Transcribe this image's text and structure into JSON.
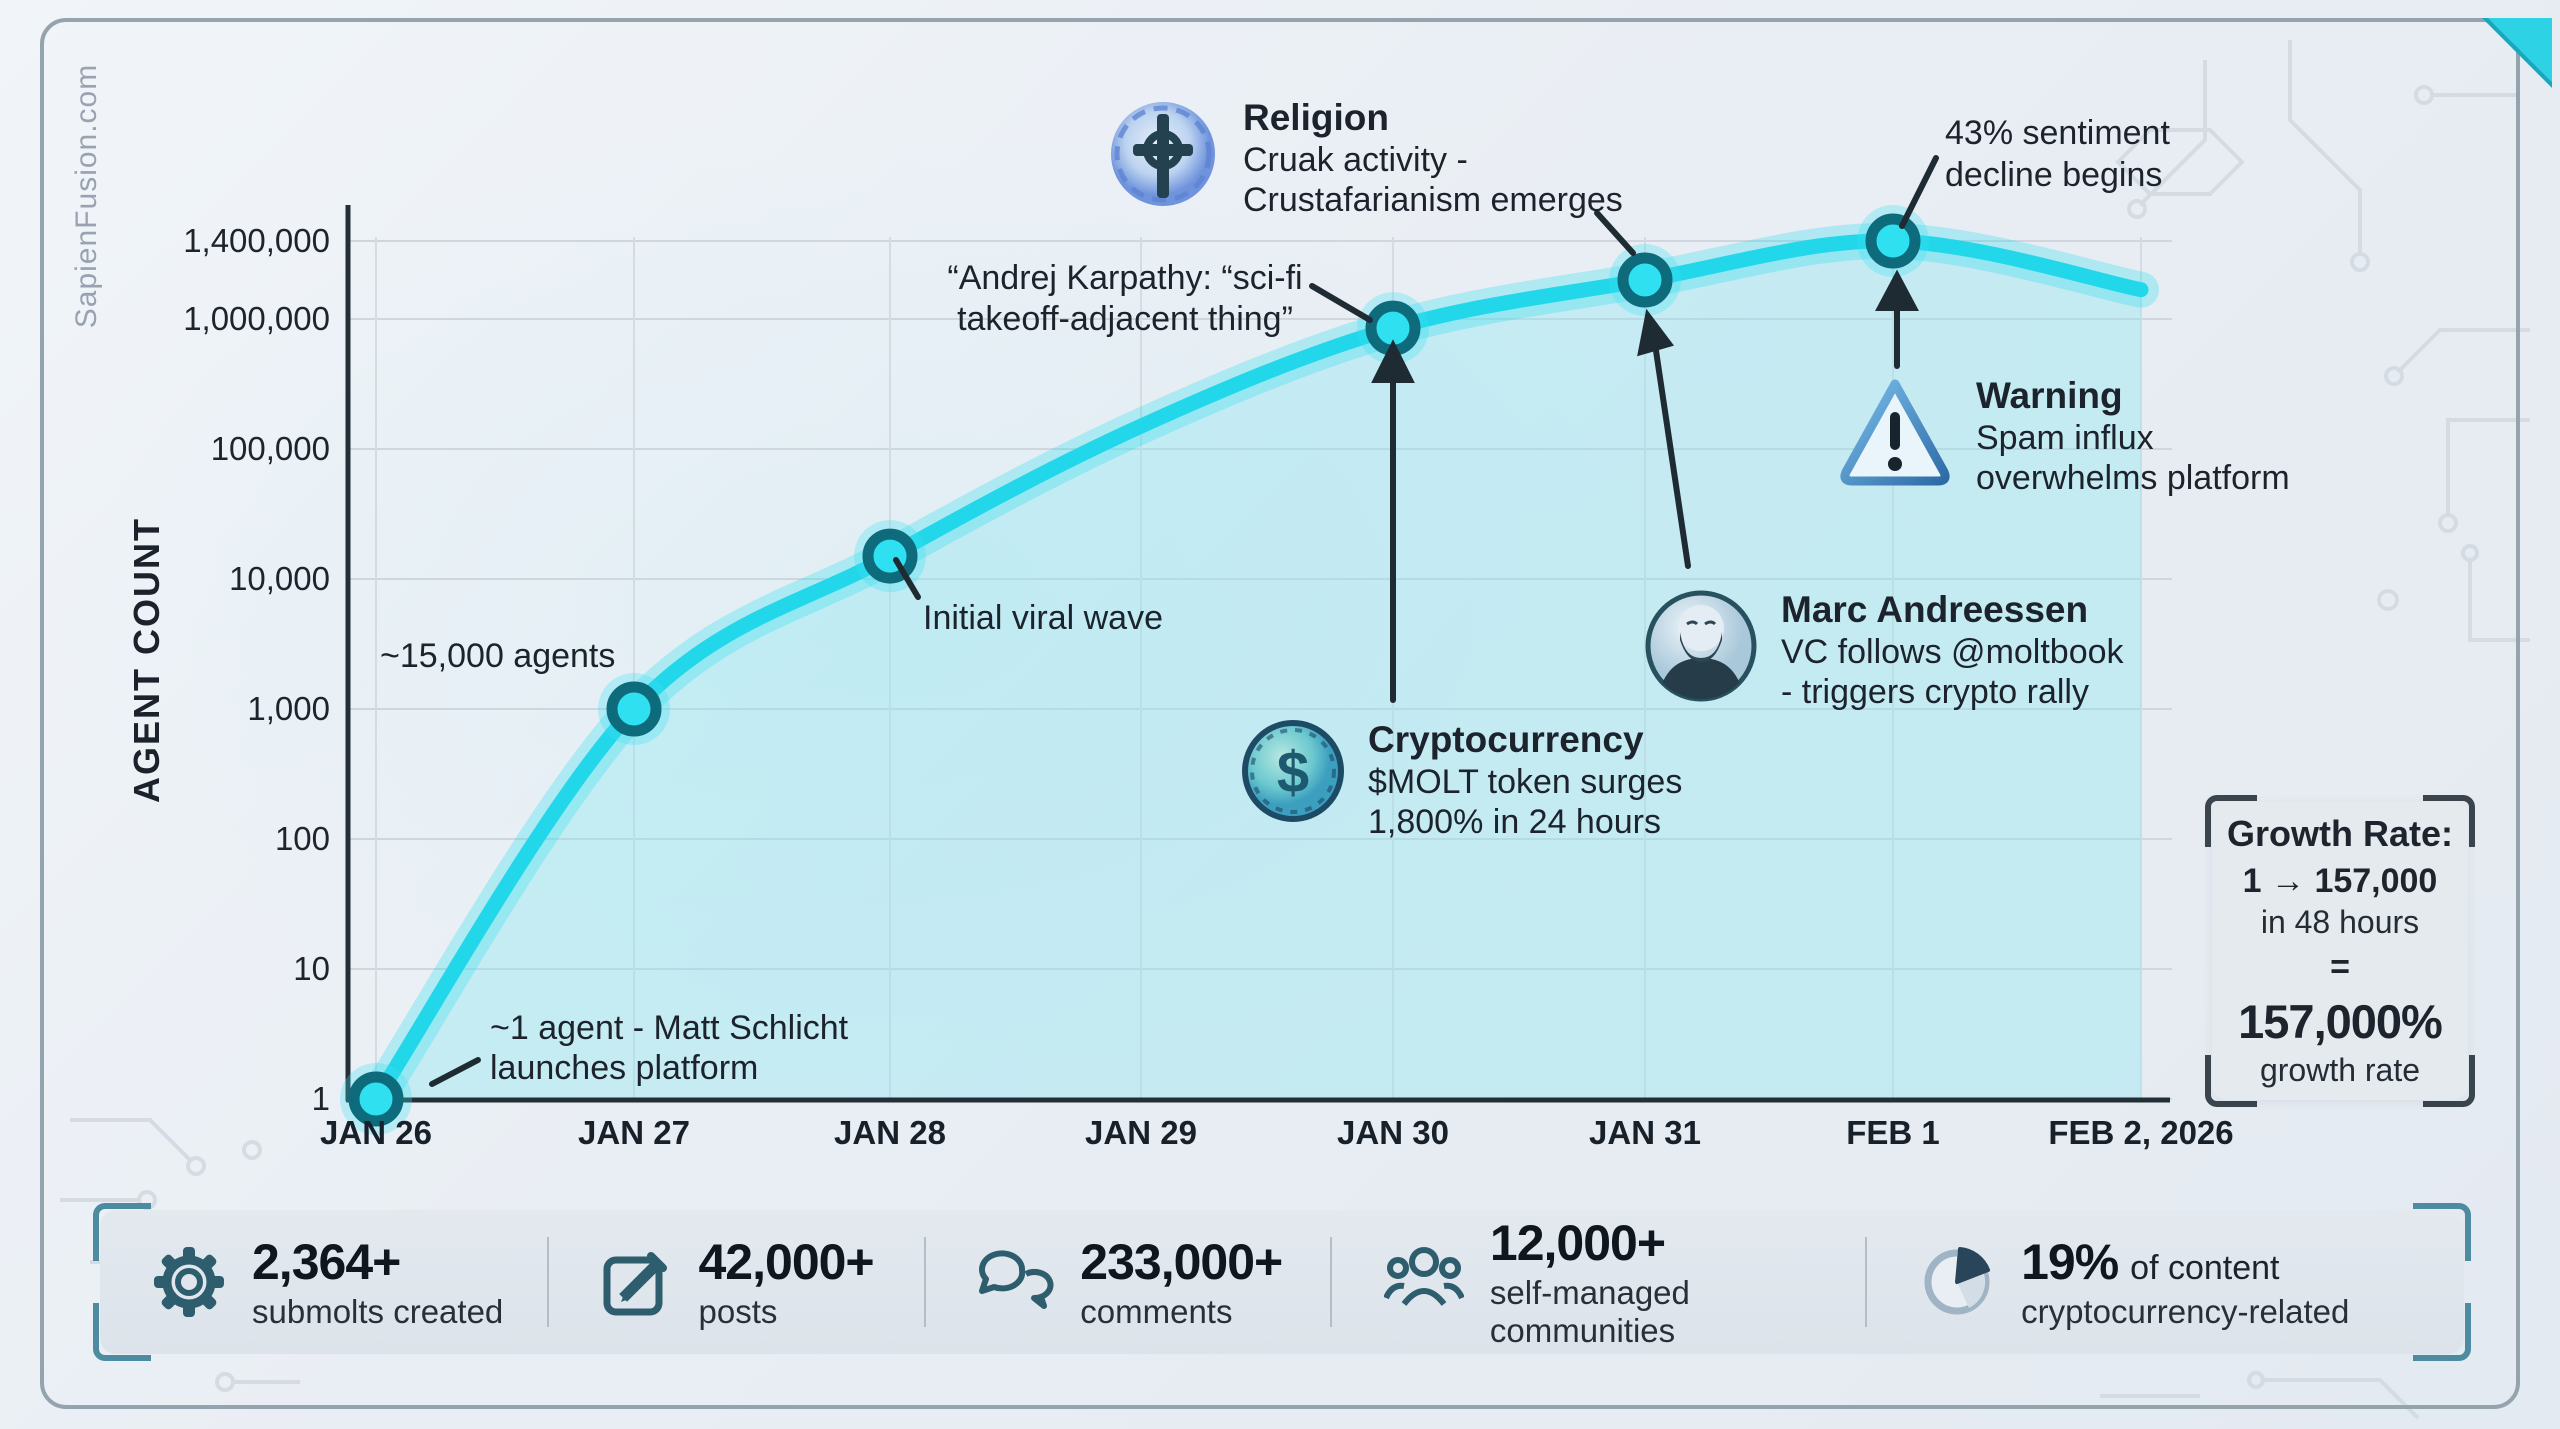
{
  "site": {
    "watermark": "SapienFusion.com"
  },
  "chart_data": {
    "type": "line",
    "title": "",
    "ylabel": "AGENT COUNT",
    "xlabel": "",
    "yscale": "log",
    "ylim": [
      1,
      1400000
    ],
    "grid": true,
    "line_color": "#22d7ea",
    "marker_ring_color": "#0d6b7c",
    "y_ticks": [
      "1,400,000",
      "1,000,000",
      "100,000",
      "10,000",
      "1,000",
      "100",
      "10",
      "1"
    ],
    "x": [
      "JAN 26",
      "JAN 27",
      "JAN 28",
      "JAN 29",
      "JAN 30",
      "JAN 31",
      "FEB 1",
      "FEB 2, 2026"
    ],
    "series": [
      {
        "name": "Agent count",
        "values": [
          1,
          1000,
          15000,
          150000,
          850000,
          1200000,
          1400000,
          1150000
        ],
        "markers_at": [
          0,
          1,
          2,
          4,
          5,
          6
        ]
      }
    ]
  },
  "annotations": {
    "launch": {
      "line1": "~1 agent - Matt Schlicht",
      "line2": "launches platform"
    },
    "agents15k": {
      "text": "~15,000 agents"
    },
    "viral": {
      "text": "Initial viral wave"
    },
    "karpathy": {
      "line1": "“Andrej Karpathy: “sci-fi",
      "line2": "takeoff-adjacent thing”"
    },
    "religion": {
      "title": "Religion",
      "line1": "Cruak activity -",
      "line2": "Crustafarianism emerges"
    },
    "crypto": {
      "title": "Cryptocurrency",
      "line1": "$MOLT token surges",
      "line2": "1,800% in 24 hours"
    },
    "marc": {
      "title": "Marc Andreessen",
      "line1": "VC follows @moltbook",
      "line2": "- triggers crypto rally"
    },
    "sentiment": {
      "line1": "43% sentiment",
      "line2": "decline begins"
    },
    "warning": {
      "title": "Warning",
      "line1": "Spam influx",
      "line2": "overwhelms platform"
    }
  },
  "growth_box": {
    "title": "Growth Rate:",
    "from_to": "1 → 157,000",
    "duration": "in 48 hours",
    "equals": "=",
    "rate": "157,000%",
    "rate_label": "growth rate"
  },
  "stats": [
    {
      "icon": "gear-icon",
      "value": "2,364+",
      "label": "submolts created"
    },
    {
      "icon": "edit-icon",
      "value": "42,000+",
      "label": "posts"
    },
    {
      "icon": "comments-icon",
      "value": "233,000+",
      "label": "comments"
    },
    {
      "icon": "people-icon",
      "value": "12,000+",
      "label": "self-managed communities"
    },
    {
      "icon": "pie-chart-icon",
      "value": "19%",
      "label_inline": "of content",
      "label": "cryptocurrency-related"
    }
  ]
}
